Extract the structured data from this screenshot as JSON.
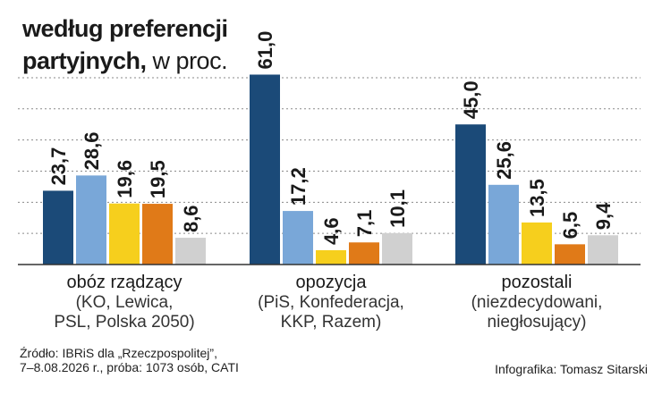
{
  "title": {
    "line1": "według preferencji",
    "line2_bold": "partyjnych,",
    "line2_unit": " w proc."
  },
  "colors": {
    "series": [
      "#1b4a78",
      "#79a7d8",
      "#f6cf1d",
      "#e07a18",
      "#d0d0d0"
    ],
    "grid": "#8a8a8a",
    "axis": "#333333"
  },
  "chart_data": {
    "type": "bar",
    "ylim": [
      0,
      62
    ],
    "grid": true,
    "groups": [
      {
        "label": "obóz rządzący",
        "sublabel": [
          "(KO, Lewica,",
          "PSL, Polska 2050)"
        ],
        "values": [
          23.7,
          28.6,
          19.6,
          19.5,
          8.6
        ],
        "value_labels": [
          "23,7",
          "28,6",
          "19,6",
          "19,5",
          "8,6"
        ]
      },
      {
        "label": "opozycja",
        "sublabel": [
          "(PiS, Konfederacja,",
          "KKP, Razem)"
        ],
        "values": [
          61.0,
          17.2,
          4.6,
          7.1,
          10.1
        ],
        "value_labels": [
          "61,0",
          "17,2",
          "4,6",
          "7,1",
          "10,1"
        ]
      },
      {
        "label": "pozostali",
        "sublabel": [
          "(niezdecydowani,",
          "niegłosujący)"
        ],
        "values": [
          45.0,
          25.6,
          13.5,
          6.5,
          9.4
        ],
        "value_labels": [
          "45,0",
          "25,6",
          "13,5",
          "6,5",
          "9,4"
        ]
      }
    ]
  },
  "footer": {
    "source_line1": "Źródło: IBRiS dla „Rzeczpospolitej”,",
    "source_line2": "7–8.08.2026 r., próba: 1073 osób, CATI",
    "credit": "Infografika: Tomasz Sitarski"
  }
}
